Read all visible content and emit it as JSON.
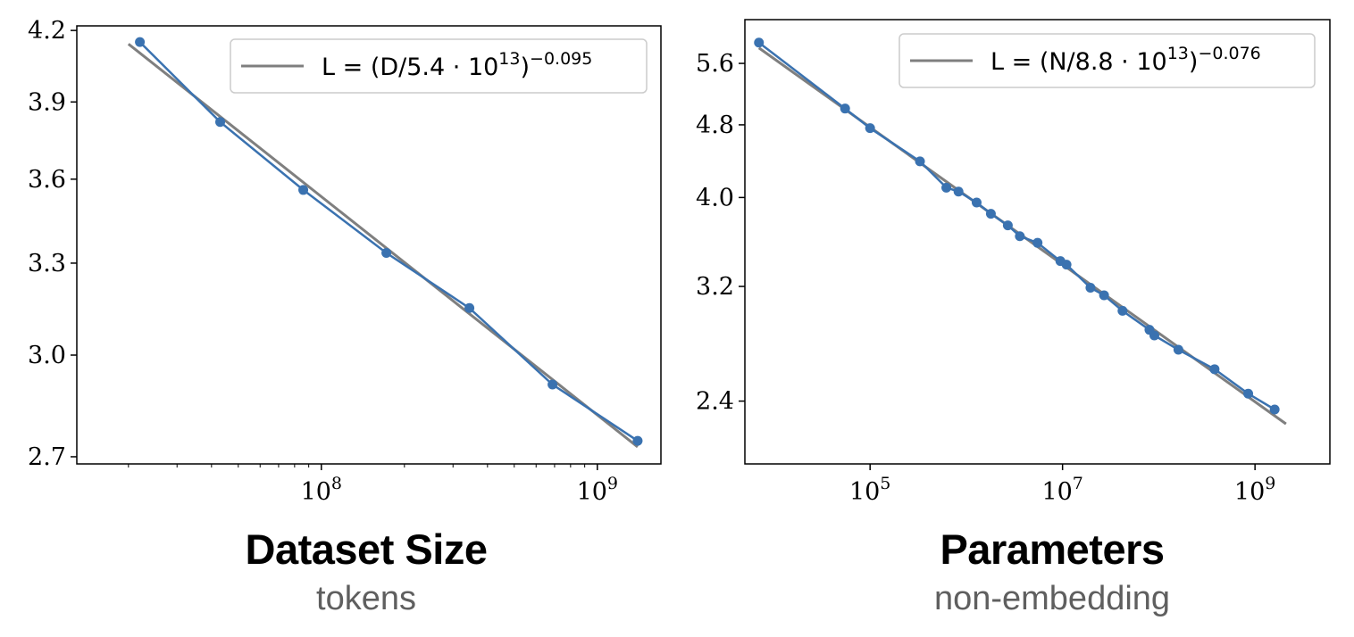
{
  "colors": {
    "series": "#3a72b0",
    "fit": "#7f7f7f",
    "axis": "#000000",
    "legend_border": "#cccccc"
  },
  "chart_data": [
    {
      "type": "line",
      "x_scale": "log",
      "y_scale": "log",
      "xlabel": "Dataset Size",
      "xlabel_sub": "tokens",
      "ylabel": "",
      "xlim": [
        13000000,
        1700000000
      ],
      "ylim": [
        2.68,
        4.22
      ],
      "y_ticks": [
        2.7,
        3.0,
        3.3,
        3.6,
        3.9,
        4.2
      ],
      "y_tick_labels": [
        "2.7",
        "3.0",
        "3.3",
        "3.6",
        "3.9",
        "4.2"
      ],
      "x_ticks": [
        {
          "base": "10",
          "exp": "8",
          "value": 100000000
        },
        {
          "base": "10",
          "exp": "9",
          "value": 1000000000
        }
      ],
      "x_minor_ticks": [
        20000000,
        30000000,
        40000000,
        50000000,
        60000000,
        70000000,
        80000000,
        90000000,
        200000000,
        300000000,
        400000000,
        500000000,
        600000000,
        700000000,
        800000000,
        900000000
      ],
      "legend_position": "top-right",
      "legend": {
        "prefix": "L = (D/5.4 · 10",
        "exp1": "13",
        "mid": ")",
        "exp2": "−0.095"
      },
      "series": [
        {
          "values": [
            [
              22000000,
              4.15
            ],
            [
              43000000,
              3.82
            ],
            [
              86000000,
              3.56
            ],
            [
              172000000,
              3.335
            ],
            [
              344000000,
              3.15
            ],
            [
              688000000,
              2.91
            ],
            [
              1400000000,
              2.745
            ]
          ]
        }
      ],
      "fit": {
        "x_range": [
          20000000,
          1400000000
        ]
      }
    },
    {
      "type": "line",
      "x_scale": "log",
      "y_scale": "log",
      "xlabel": "Parameters",
      "xlabel_sub": "non-embedding",
      "ylabel": "",
      "xlim": [
        5000,
        6000000000
      ],
      "ylim": [
        2.05,
        6.25
      ],
      "y_ticks": [
        2.4,
        3.2,
        4.0,
        4.8,
        5.6
      ],
      "y_tick_labels": [
        "2.4",
        "3.2",
        "4.0",
        "4.8",
        "5.6"
      ],
      "x_ticks": [
        {
          "base": "10",
          "exp": "5",
          "value": 100000
        },
        {
          "base": "10",
          "exp": "7",
          "value": 10000000
        },
        {
          "base": "10",
          "exp": "9",
          "value": 1000000000
        }
      ],
      "x_minor_ticks": [],
      "legend_position": "top-right",
      "legend": {
        "prefix": "L = (N/8.8 · 10",
        "exp1": "13",
        "mid": ")",
        "exp2": "−0.076"
      },
      "series": [
        {
          "values": [
            [
              7000,
              5.9
            ],
            [
              55000,
              5.0
            ],
            [
              100000,
              4.76
            ],
            [
              330000,
              4.38
            ],
            [
              620000,
              4.1
            ],
            [
              830000,
              4.06
            ],
            [
              1280000,
              3.95
            ],
            [
              1800000,
              3.84
            ],
            [
              2700000,
              3.73
            ],
            [
              3600000,
              3.63
            ],
            [
              5500000,
              3.57
            ],
            [
              9500000,
              3.41
            ],
            [
              11000000,
              3.38
            ],
            [
              19500000,
              3.19
            ],
            [
              27000000,
              3.13
            ],
            [
              42000000,
              3.01
            ],
            [
              80000000,
              2.87
            ],
            [
              90000000,
              2.83
            ],
            [
              160000000,
              2.73
            ],
            [
              380000000,
              2.6
            ],
            [
              850000000,
              2.445
            ],
            [
              1600000000,
              2.35
            ]
          ]
        }
      ],
      "fit": {
        "x_range": [
          7000,
          2100000000
        ]
      }
    }
  ]
}
